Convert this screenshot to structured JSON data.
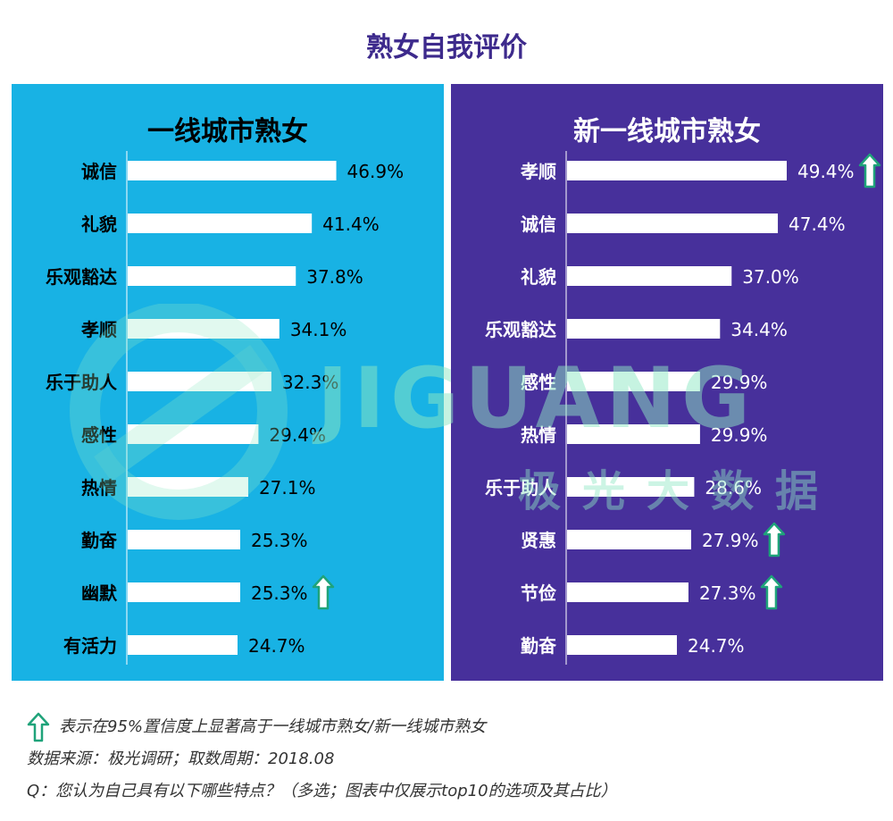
{
  "page": {
    "title": "熟女自我评价",
    "watermark_text": "JIGUANG",
    "watermark_sub": "极光大数据"
  },
  "colors": {
    "title": "#3d2a8c",
    "left_panel": "#18b2e4",
    "right_panel": "#47309b",
    "bar": "#ffffff",
    "arrow": "#1fa37a"
  },
  "chart_data": [
    {
      "type": "bar",
      "orientation": "horizontal",
      "title": "一线城市熟女",
      "categories": [
        "诚信",
        "礼貌",
        "乐观豁达",
        "孝顺",
        "乐于助人",
        "感性",
        "热情",
        "勤奋",
        "幽默",
        "有活力"
      ],
      "values": [
        46.9,
        41.4,
        37.8,
        34.1,
        32.3,
        29.4,
        27.1,
        25.3,
        25.3,
        24.7
      ],
      "value_labels": [
        "46.9%",
        "41.4%",
        "37.8%",
        "34.1%",
        "32.3%",
        "29.4%",
        "27.1%",
        "25.3%",
        "25.3%",
        "24.7%"
      ],
      "significant": [
        false,
        false,
        false,
        false,
        false,
        false,
        false,
        false,
        true,
        false
      ],
      "unit": "%"
    },
    {
      "type": "bar",
      "orientation": "horizontal",
      "title": "新一线城市熟女",
      "categories": [
        "孝顺",
        "诚信",
        "礼貌",
        "乐观豁达",
        "感性",
        "热情",
        "乐于助人",
        "贤惠",
        "节俭",
        "勤奋"
      ],
      "values": [
        49.4,
        47.4,
        37.0,
        34.4,
        29.9,
        29.9,
        28.6,
        27.9,
        27.3,
        24.7
      ],
      "value_labels": [
        "49.4%",
        "47.4%",
        "37.0%",
        "34.4%",
        "29.9%",
        "29.9%",
        "28.6%",
        "27.9%",
        "27.3%",
        "24.7%"
      ],
      "significant": [
        true,
        false,
        false,
        false,
        false,
        false,
        false,
        true,
        true,
        false
      ],
      "unit": "%"
    }
  ],
  "notes": {
    "legend": "表示在95%置信度上显著高于一线城市熟女/新一线城市熟女",
    "source": "数据来源：极光调研；取数周期：2018.08",
    "question": "Q：您认为自己具有以下哪些特点？（多选；图表中仅展示top10的选项及其占比）"
  }
}
